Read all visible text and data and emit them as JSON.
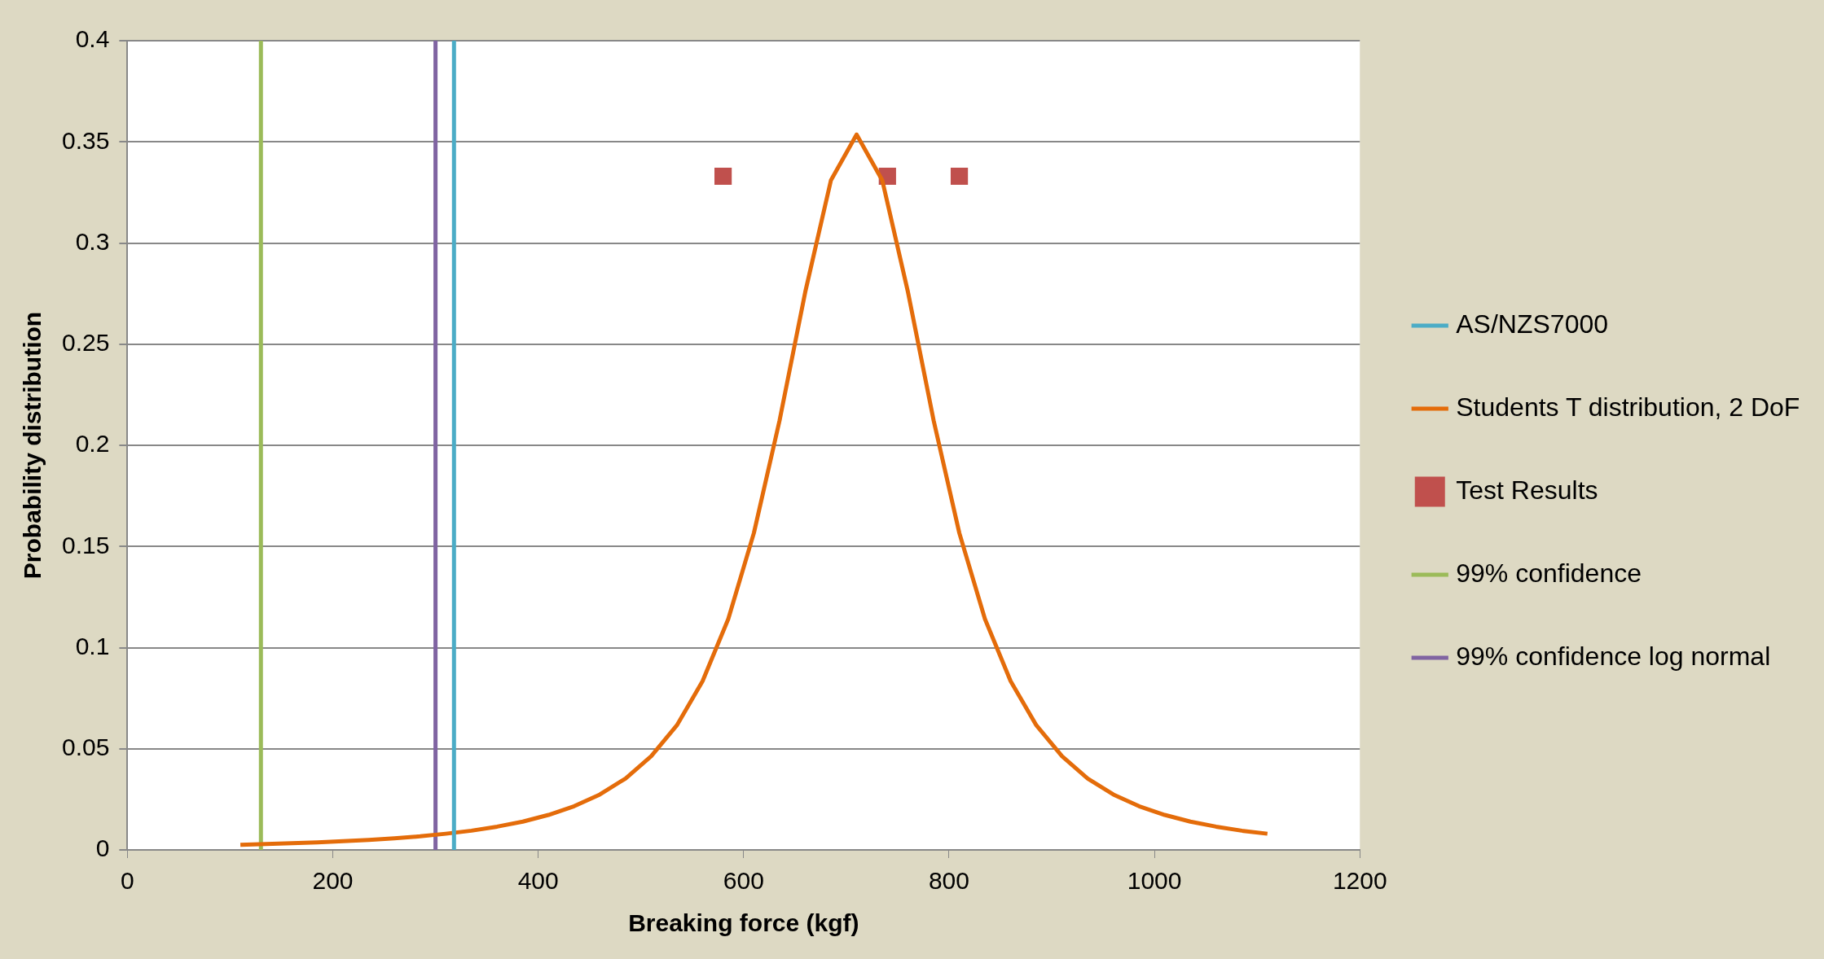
{
  "chart_data": {
    "type": "line",
    "xlabel": "Breaking force (kgf)",
    "ylabel": "Probability distribution",
    "xlim": [
      0,
      1200
    ],
    "xticks": [
      0,
      200,
      400,
      600,
      800,
      1000,
      1200
    ],
    "ylim": [
      0,
      0.4
    ],
    "yticks": [
      0,
      0.05,
      0.1,
      0.15,
      0.2,
      0.25,
      0.3,
      0.35,
      0.4
    ],
    "grid": "y",
    "legend": "right",
    "series": [
      {
        "name": "AS/NZS7000",
        "color": "#4bacc6",
        "marker": "none",
        "x": [
          318,
          318
        ],
        "values": [
          0,
          0.4
        ]
      },
      {
        "name": "Students T distribution, 2 DoF",
        "color": "#e46c0a",
        "marker": "none",
        "x": [
          110,
          135,
          160,
          185,
          210,
          235,
          260,
          285,
          310,
          335,
          360,
          385,
          410,
          435,
          460,
          485,
          510,
          535,
          560,
          585,
          610,
          635,
          660,
          685,
          710,
          735,
          760,
          785,
          810,
          835,
          860,
          885,
          910,
          935,
          960,
          985,
          1010,
          1035,
          1060,
          1085,
          1110
        ],
        "values": [
          0.0025,
          0.0029,
          0.0033,
          0.0037,
          0.0043,
          0.0049,
          0.0057,
          0.0067,
          0.008,
          0.0095,
          0.0115,
          0.014,
          0.0173,
          0.0216,
          0.0274,
          0.0353,
          0.0463,
          0.0616,
          0.0834,
          0.1141,
          0.1567,
          0.2123,
          0.2758,
          0.331,
          0.3536,
          0.331,
          0.2758,
          0.2123,
          0.1567,
          0.1141,
          0.0834,
          0.0616,
          0.0463,
          0.0353,
          0.0274,
          0.0216,
          0.0173,
          0.014,
          0.0115,
          0.0095,
          0.008
        ]
      },
      {
        "name": "Test Results",
        "type": "scatter",
        "color": "#c0504d",
        "marker": "square",
        "x": [
          580,
          740,
          810
        ],
        "values": [
          0.333,
          0.333,
          0.333
        ]
      },
      {
        "name": "99% confidence",
        "color": "#9bbb59",
        "marker": "none",
        "x": [
          130,
          130
        ],
        "values": [
          0,
          0.4
        ]
      },
      {
        "name": "99% confidence log normal",
        "color": "#8064a2",
        "marker": "none",
        "x": [
          300,
          300
        ],
        "values": [
          0,
          0.4
        ]
      }
    ]
  }
}
